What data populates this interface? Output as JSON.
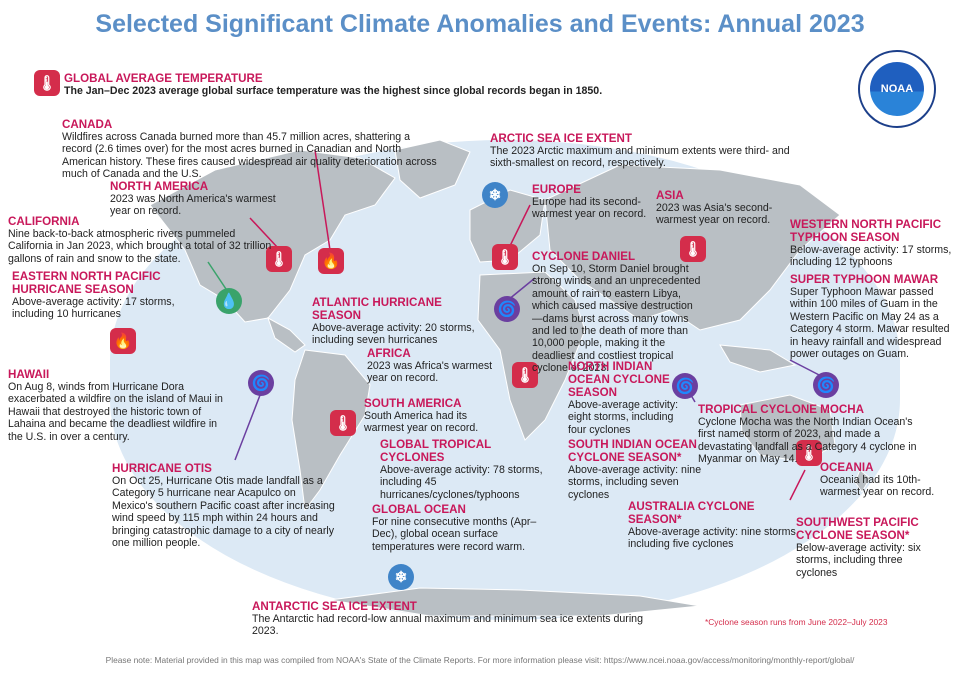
{
  "title": "Selected Significant Climate Anomalies and Events: Annual 2023",
  "logo_text": "NOAA",
  "colors": {
    "title": "#5b8fc7",
    "heading": "#c8185a",
    "icon_red": "#d42d4b",
    "icon_purple": "#6b3fa0",
    "icon_blue": "#3f84c8",
    "icon_green": "#3aa36b",
    "ocean": "#dce9f5",
    "land": "#b9bfc4"
  },
  "events": {
    "global": {
      "heading": "GLOBAL AVERAGE TEMPERATURE",
      "text": "The Jan–Dec 2023 average global surface temperature was the highest since global records began in 1850.",
      "icon": "thermometer-icon"
    },
    "canada": {
      "heading": "CANADA",
      "text": "Wildfires across Canada burned more than 45.7 million acres, shattering a record (2.6 times over) for the most acres burned in Canadian and North American history. These fires caused widespread air quality deterioration across much of Canada and the U.S.",
      "icon": "fire-icon"
    },
    "north_america": {
      "heading": "NORTH AMERICA",
      "text": "2023 was North America's warmest year on record.",
      "icon": "thermometer-icon"
    },
    "california": {
      "heading": "CALIFORNIA",
      "text": "Nine back-to-back atmospheric rivers pummeled California in Jan 2023, which brought a total of 32 trillion gallons of rain and snow to the state.",
      "icon": "rain-icon"
    },
    "enp": {
      "heading": "EASTERN NORTH PACIFIC HURRICANE SEASON",
      "text": "Above-average activity: 17 storms, including 10 hurricanes"
    },
    "hawaii": {
      "heading": "HAWAII",
      "text": "On Aug 8, winds from Hurricane Dora exacerbated a wildfire on the island of Maui in Hawaii that destroyed the historic town of Lahaina and became the deadliest wildfire in the U.S. in over a century.",
      "icon": "fire-icon"
    },
    "otis": {
      "heading": "HURRICANE OTIS",
      "text": "On Oct 25, Hurricane Otis made landfall as a Category 5 hurricane near Acapulco on Mexico's southern Pacific coast after increasing wind speed by 115 mph within 24 hours and bringing catastrophic damage to a city of nearly one million people.",
      "icon": "cyclone-icon"
    },
    "atlantic": {
      "heading": "ATLANTIC HURRICANE SEASON",
      "text": "Above-average activity: 20 storms, including seven hurricanes"
    },
    "arctic": {
      "heading": "ARCTIC SEA ICE EXTENT",
      "text": "The 2023 Arctic maximum and minimum extents were third- and sixth-smallest on record, respectively.",
      "icon": "ice-icon"
    },
    "europe": {
      "heading": "EUROPE",
      "text": "Europe had its second-warmest year on record.",
      "icon": "thermometer-icon"
    },
    "asia": {
      "heading": "ASIA",
      "text": "2023 was Asia's second-warmest year on record.",
      "icon": "thermometer-icon"
    },
    "daniel": {
      "heading": "CYCLONE DANIEL",
      "text": "On Sep 10, Storm Daniel brought strong winds and an unprecedented amount of rain to eastern Libya, which caused massive destruction—dams burst across many towns and led to the death of more than 10,000 people, making it the deadliest and costliest tropical cyclone of 2023.",
      "icon": "cyclone-icon"
    },
    "wnp": {
      "heading": "WESTERN NORTH PACIFIC TYPHOON SEASON",
      "text": "Below-average activity: 17 storms, including 12 typhoons"
    },
    "mawar": {
      "heading": "SUPER TYPHOON MAWAR",
      "text": "Super Typhoon Mawar passed within 100 miles of Guam in the Western Pacific on May 24 as a Category 4 storm. Mawar resulted in heavy rainfall and widespread power outages on Guam.",
      "icon": "cyclone-icon"
    },
    "africa": {
      "heading": "AFRICA",
      "text": "2023 was Africa's warmest year on record.",
      "icon": "thermometer-icon"
    },
    "nio": {
      "heading": "NORTH INDIAN OCEAN CYCLONE SEASON",
      "text": "Above-average activity: eight storms, including four cyclones"
    },
    "mocha": {
      "heading": "TROPICAL CYCLONE MOCHA",
      "text": "Cyclone Mocha was the North Indian Ocean's first named storm of 2023, and made a devastating landfall as a Category 4 cyclone in Myanmar on May 14.",
      "icon": "cyclone-icon"
    },
    "south_america": {
      "heading": "SOUTH AMERICA",
      "text": "South America had its warmest year on record.",
      "icon": "thermometer-icon"
    },
    "gtc": {
      "heading": "GLOBAL TROPICAL CYCLONES",
      "text": "Above-average activity: 78 storms, including 45 hurricanes/cyclones/typhoons"
    },
    "sio": {
      "heading": "SOUTH INDIAN OCEAN CYCLONE SEASON*",
      "text": "Above-average activity: nine storms, including seven cyclones"
    },
    "oceania": {
      "heading": "OCEANIA",
      "text": "Oceania had its 10th-warmest year on record.",
      "icon": "thermometer-icon"
    },
    "australia": {
      "heading": "AUSTRALIA CYCLONE SEASON*",
      "text": "Above-average activity: nine storms, including five cyclones"
    },
    "swp": {
      "heading": "SOUTHWEST PACIFIC CYCLONE SEASON*",
      "text": "Below-average activity: six storms, including three cyclones"
    },
    "global_ocean": {
      "heading": "GLOBAL OCEAN",
      "text": "For nine consecutive months (Apr–Dec), global ocean surface temperatures were record warm."
    },
    "antarctic": {
      "heading": "ANTARCTIC SEA ICE EXTENT",
      "text": "The Antarctic had record-low annual maximum and minimum sea ice extents during 2023.",
      "icon": "ice-icon"
    }
  },
  "season_note": "*Cyclone season runs from June 2022–July 2023",
  "footer": "Please note: Material provided in this map was compiled from NOAA's State of the Climate Reports. For more information please visit: https://www.ncei.noaa.gov/access/monitoring/monthly-report/global/"
}
